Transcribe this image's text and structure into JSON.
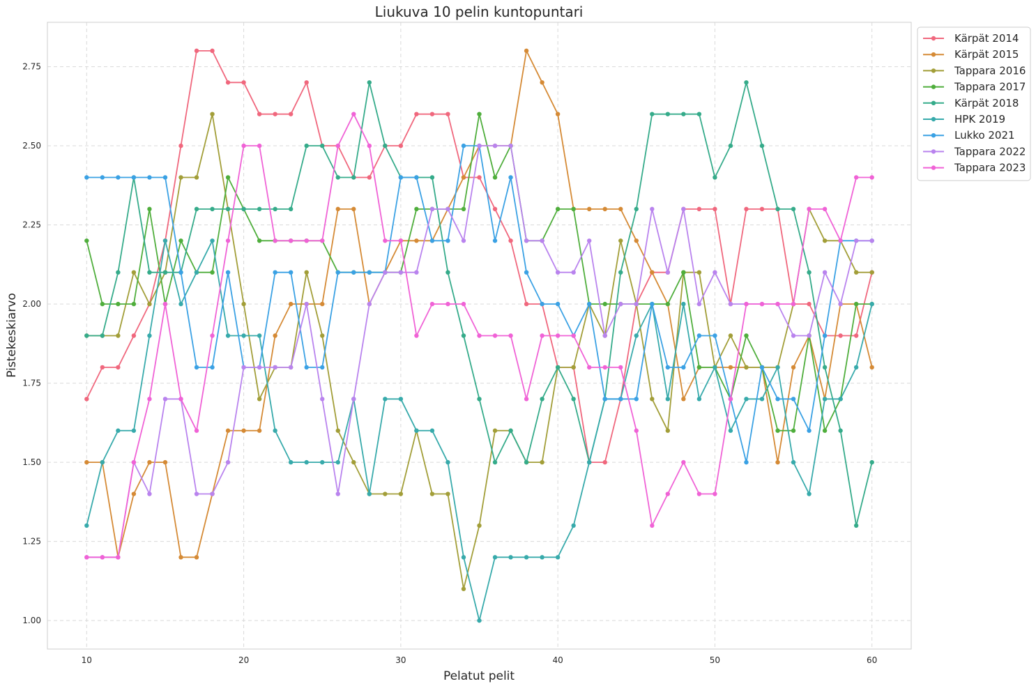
{
  "chart_data": {
    "type": "line",
    "title": "Liukuva 10 pelin kuntopuntari",
    "xlabel": "Pelatut pelit",
    "ylabel": "Pistekeskiarvo",
    "xlim": [
      7.5,
      62.5
    ],
    "ylim": [
      0.91,
      2.89
    ],
    "xticks": [
      10,
      20,
      30,
      40,
      50,
      60
    ],
    "yticks": [
      1.0,
      1.25,
      1.5,
      1.75,
      2.0,
      2.25,
      2.5,
      2.75
    ],
    "xtick_labels": [
      "10",
      "20",
      "30",
      "40",
      "50",
      "60"
    ],
    "ytick_labels": [
      "1.00",
      "1.25",
      "1.50",
      "1.75",
      "2.00",
      "2.25",
      "2.50",
      "2.75"
    ],
    "grid": true,
    "legend_position": "upper-right-outside",
    "x": [
      10,
      11,
      12,
      13,
      14,
      15,
      16,
      17,
      18,
      19,
      20,
      21,
      22,
      23,
      24,
      25,
      26,
      27,
      28,
      29,
      30,
      31,
      32,
      33,
      34,
      35,
      36,
      37,
      38,
      39,
      40,
      41,
      42,
      43,
      44,
      45,
      46,
      47,
      48,
      49,
      50,
      51,
      52,
      53,
      54,
      55,
      56,
      57,
      58,
      59,
      60
    ],
    "series": [
      {
        "name": "Kärpät 2014",
        "color": "#f0677d",
        "values": [
          1.7,
          1.8,
          1.8,
          1.9,
          2.0,
          2.2,
          2.5,
          2.8,
          2.8,
          2.7,
          2.7,
          2.6,
          2.6,
          2.6,
          2.7,
          2.5,
          2.5,
          2.4,
          2.4,
          2.5,
          2.5,
          2.6,
          2.6,
          2.6,
          2.4,
          2.4,
          2.3,
          2.2,
          2.0,
          2.0,
          1.8,
          1.8,
          1.5,
          1.5,
          1.7,
          2.0,
          2.1,
          2.1,
          2.3,
          2.3,
          2.3,
          2.0,
          2.3,
          2.3,
          2.3,
          2.0,
          2.0,
          1.9,
          1.9,
          1.9,
          2.1
        ]
      },
      {
        "name": "Kärpät 2015",
        "color": "#d58a35",
        "values": [
          1.5,
          1.5,
          1.2,
          1.4,
          1.5,
          1.5,
          1.2,
          1.2,
          1.4,
          1.6,
          1.6,
          1.6,
          1.9,
          2.0,
          2.0,
          2.0,
          2.3,
          2.3,
          2.0,
          2.1,
          2.2,
          2.2,
          2.2,
          2.3,
          2.4,
          2.5,
          2.5,
          2.5,
          2.8,
          2.7,
          2.6,
          2.3,
          2.3,
          2.3,
          2.3,
          2.2,
          2.1,
          2.0,
          1.7,
          1.8,
          1.8,
          1.8,
          1.8,
          1.8,
          1.5,
          1.8,
          1.9,
          1.7,
          2.0,
          2.0,
          1.8
        ]
      },
      {
        "name": "Tappara 2016",
        "color": "#a29e38",
        "values": [
          1.9,
          1.9,
          1.9,
          2.1,
          2.0,
          2.1,
          2.4,
          2.4,
          2.6,
          2.3,
          2.0,
          1.7,
          1.8,
          1.8,
          2.1,
          1.9,
          1.6,
          1.5,
          1.4,
          1.4,
          1.4,
          1.6,
          1.4,
          1.4,
          1.1,
          1.3,
          1.6,
          1.6,
          1.5,
          1.5,
          1.8,
          1.8,
          2.0,
          1.9,
          2.2,
          2.0,
          1.7,
          1.6,
          2.1,
          2.1,
          1.8,
          1.9,
          1.8,
          1.8,
          1.8,
          2.0,
          2.3,
          2.2,
          2.2,
          2.1,
          2.1
        ]
      },
      {
        "name": "Tappara 2017",
        "color": "#4fae3c",
        "values": [
          2.2,
          2.0,
          2.0,
          2.0,
          2.3,
          2.0,
          2.2,
          2.1,
          2.1,
          2.4,
          2.3,
          2.2,
          2.2,
          2.2,
          2.2,
          2.2,
          2.1,
          2.1,
          2.1,
          2.1,
          2.1,
          2.3,
          2.3,
          2.3,
          2.3,
          2.6,
          2.4,
          2.5,
          2.2,
          2.2,
          2.3,
          2.3,
          2.0,
          2.0,
          2.0,
          2.0,
          2.0,
          2.0,
          2.1,
          1.8,
          1.8,
          1.7,
          1.9,
          1.8,
          1.6,
          1.6,
          1.9,
          1.6,
          1.7,
          2.0,
          2.0
        ]
      },
      {
        "name": "Kärpät 2018",
        "color": "#35ab8a",
        "values": [
          1.9,
          1.9,
          2.1,
          2.4,
          2.1,
          2.1,
          2.1,
          2.3,
          2.3,
          2.3,
          2.3,
          2.3,
          2.3,
          2.3,
          2.5,
          2.5,
          2.4,
          2.4,
          2.7,
          2.5,
          2.4,
          2.4,
          2.4,
          2.1,
          1.9,
          1.7,
          1.5,
          1.6,
          1.5,
          1.7,
          1.8,
          1.7,
          1.5,
          1.7,
          2.1,
          2.3,
          2.6,
          2.6,
          2.6,
          2.6,
          2.4,
          2.5,
          2.7,
          2.5,
          2.3,
          2.3,
          2.1,
          1.8,
          1.6,
          1.3,
          1.5
        ]
      },
      {
        "name": "HPK 2019",
        "color": "#37aaab",
        "values": [
          1.3,
          1.5,
          1.6,
          1.6,
          1.9,
          2.2,
          2.0,
          2.1,
          2.2,
          1.9,
          1.9,
          1.9,
          1.6,
          1.5,
          1.5,
          1.5,
          1.5,
          1.7,
          1.4,
          1.7,
          1.7,
          1.6,
          1.6,
          1.5,
          1.2,
          1.0,
          1.2,
          1.2,
          1.2,
          1.2,
          1.2,
          1.3,
          1.5,
          1.7,
          1.7,
          1.9,
          2.0,
          1.7,
          2.0,
          1.7,
          1.8,
          1.6,
          1.7,
          1.7,
          1.8,
          1.5,
          1.4,
          1.7,
          1.7,
          1.8,
          2.0
        ]
      },
      {
        "name": "Lukko 2021",
        "color": "#3aa1e4",
        "values": [
          2.4,
          2.4,
          2.4,
          2.4,
          2.4,
          2.4,
          2.1,
          1.8,
          1.8,
          2.1,
          1.8,
          1.8,
          2.1,
          2.1,
          1.8,
          1.8,
          2.1,
          2.1,
          2.1,
          2.1,
          2.4,
          2.4,
          2.2,
          2.2,
          2.5,
          2.5,
          2.2,
          2.4,
          2.1,
          2.0,
          2.0,
          1.9,
          2.0,
          1.7,
          1.7,
          1.7,
          2.0,
          1.8,
          1.8,
          1.9,
          1.9,
          1.7,
          1.5,
          1.8,
          1.7,
          1.7,
          1.6,
          1.9,
          2.2,
          2.2,
          2.2
        ]
      },
      {
        "name": "Tappara 2022",
        "color": "#b983ee",
        "values": [
          1.2,
          1.2,
          1.2,
          1.5,
          1.4,
          1.7,
          1.7,
          1.4,
          1.4,
          1.5,
          1.8,
          1.8,
          1.8,
          1.8,
          2.0,
          1.7,
          1.4,
          1.7,
          2.0,
          2.1,
          2.1,
          2.1,
          2.3,
          2.3,
          2.2,
          2.5,
          2.5,
          2.5,
          2.2,
          2.2,
          2.1,
          2.1,
          2.2,
          1.9,
          2.0,
          2.0,
          2.3,
          2.1,
          2.3,
          2.0,
          2.1,
          2.0,
          2.0,
          2.0,
          2.0,
          1.9,
          1.9,
          2.1,
          2.0,
          2.2,
          2.2
        ]
      },
      {
        "name": "Tappara 2023",
        "color": "#f062d6",
        "values": [
          1.2,
          1.2,
          1.2,
          1.5,
          1.7,
          2.0,
          1.7,
          1.6,
          1.9,
          2.2,
          2.5,
          2.5,
          2.2,
          2.2,
          2.2,
          2.2,
          2.5,
          2.6,
          2.5,
          2.2,
          2.2,
          1.9,
          2.0,
          2.0,
          2.0,
          1.9,
          1.9,
          1.9,
          1.7,
          1.9,
          1.9,
          1.9,
          1.8,
          1.8,
          1.8,
          1.6,
          1.3,
          1.4,
          1.5,
          1.4,
          1.4,
          1.7,
          2.0,
          2.0,
          2.0,
          2.0,
          2.3,
          2.3,
          2.2,
          2.4,
          2.4
        ]
      }
    ]
  }
}
